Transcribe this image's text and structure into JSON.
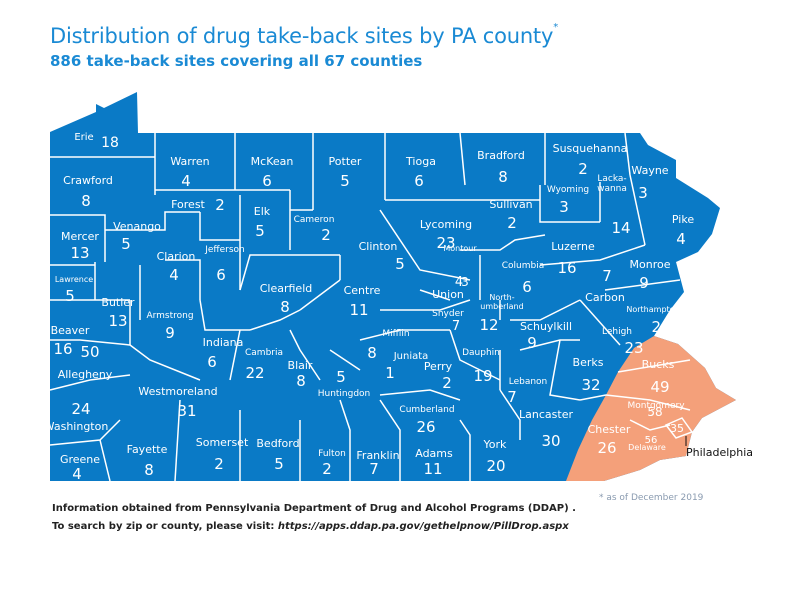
{
  "title": "Distribution of drug take-back sites by PA county",
  "title_mark": "*",
  "subtitle": "886 take-back sites covering all 67 counties",
  "footer": {
    "line1": "Information obtained from Pennsylvania Department of Drug and Alcohol Programs (DDAP) .",
    "line2_prefix": "To search by zip or county, please visit: ",
    "line2_url": "https://apps.ddap.pa.gov/gethelpnow/PillDrop.aspx",
    "as_of": "* as of December 2019"
  },
  "colors": {
    "default": "#0a7ac6",
    "highlight": "#f4a07a",
    "border": "#ffffff"
  },
  "callout": "Philadelphia",
  "counties": [
    {
      "name": "Erie",
      "count": "18",
      "region": "default"
    },
    {
      "name": "Warren",
      "count": "4",
      "region": "default"
    },
    {
      "name": "McKean",
      "count": "6",
      "region": "default"
    },
    {
      "name": "Potter",
      "count": "5",
      "region": "default"
    },
    {
      "name": "Tioga",
      "count": "6",
      "region": "default"
    },
    {
      "name": "Bradford",
      "count": "8",
      "region": "default"
    },
    {
      "name": "Susquehanna",
      "count": "2",
      "region": "default"
    },
    {
      "name": "Wayne",
      "count": "3",
      "region": "default"
    },
    {
      "name": "Crawford",
      "count": "8",
      "region": "default"
    },
    {
      "name": "Forest",
      "count": "2",
      "region": "default"
    },
    {
      "name": "Elk",
      "count": "5",
      "region": "default"
    },
    {
      "name": "Cameron",
      "count": "2",
      "region": "default"
    },
    {
      "name": "Sullivan",
      "count": "2",
      "region": "default"
    },
    {
      "name": "Wyoming",
      "count": "3",
      "region": "default"
    },
    {
      "name": "Lacka-\nwanna",
      "count": "14",
      "region": "default"
    },
    {
      "name": "Pike",
      "count": "4",
      "region": "default"
    },
    {
      "name": "Mercer",
      "count": "13",
      "region": "default"
    },
    {
      "name": "Venango",
      "count": "5",
      "region": "default"
    },
    {
      "name": "Clarion",
      "count": "4",
      "region": "default"
    },
    {
      "name": "Jefferson",
      "count": "6",
      "region": "default"
    },
    {
      "name": "Clinton",
      "count": "5",
      "region": "default"
    },
    {
      "name": "Lycoming",
      "count": "23",
      "region": "default"
    },
    {
      "name": "Montour",
      "count": "3",
      "region": "default"
    },
    {
      "name": "Columbia",
      "count": "6",
      "region": "default"
    },
    {
      "name": "Luzerne",
      "count": "16",
      "region": "default"
    },
    {
      "name": "Monroe",
      "count": "9",
      "region": "default"
    },
    {
      "name": "Lawrence",
      "count": "5",
      "region": "default"
    },
    {
      "name": "Butler",
      "count": "13",
      "region": "default"
    },
    {
      "name": "Armstrong",
      "count": "9",
      "region": "default"
    },
    {
      "name": "Clearfield",
      "count": "8",
      "region": "default"
    },
    {
      "name": "Centre",
      "count": "11",
      "region": "default"
    },
    {
      "name": "Union",
      "count": "4",
      "region": "default"
    },
    {
      "name": "North-\numberland",
      "count": "12",
      "region": "default"
    },
    {
      "name": "Carbon",
      "count": "7",
      "region": "default"
    },
    {
      "name": "Northampton",
      "count": "26",
      "region": "default"
    },
    {
      "name": "Beaver",
      "count": "16",
      "region": "default"
    },
    {
      "name": "Indiana",
      "count": "6",
      "region": "default"
    },
    {
      "name": "Snyder",
      "count": "7",
      "region": "default"
    },
    {
      "name": "Schuylkill",
      "count": "9",
      "region": "default"
    },
    {
      "name": "Lehigh",
      "count": "23",
      "region": "default"
    },
    {
      "name": "Allegheny",
      "count": "50",
      "region": "default"
    },
    {
      "name": "Cambria",
      "count": "22",
      "region": "default"
    },
    {
      "name": "Blair",
      "count": "8",
      "region": "default"
    },
    {
      "name": "Mifflin",
      "count": "8",
      "region": "default"
    },
    {
      "name": "Juniata",
      "count": "1",
      "region": "default"
    },
    {
      "name": "Dauphin",
      "count": "19",
      "region": "default"
    },
    {
      "name": "Perry",
      "count": "2",
      "region": "default"
    },
    {
      "name": "Lebanon",
      "count": "7",
      "region": "default"
    },
    {
      "name": "Berks",
      "count": "32",
      "region": "default"
    },
    {
      "name": "Bucks",
      "count": "49",
      "region": "highlight"
    },
    {
      "name": "Westmoreland",
      "count": "31",
      "region": "default"
    },
    {
      "name": "Huntingdon",
      "count": "5",
      "region": "default"
    },
    {
      "name": "Cumberland",
      "count": "26",
      "region": "default"
    },
    {
      "name": "Lancaster",
      "count": "30",
      "region": "default"
    },
    {
      "name": "Montgomery",
      "count": "58",
      "region": "highlight"
    },
    {
      "name": "Washington",
      "count": "24",
      "region": "default"
    },
    {
      "name": "Chester",
      "count": "26",
      "region": "highlight"
    },
    {
      "name": "Delaware",
      "count": "56",
      "region": "highlight"
    },
    {
      "name": "Philadelphia",
      "count": "35",
      "region": "highlight"
    },
    {
      "name": "Somerset",
      "count": "2",
      "region": "default"
    },
    {
      "name": "Bedford",
      "count": "5",
      "region": "default"
    },
    {
      "name": "Fulton",
      "count": "2",
      "region": "default"
    },
    {
      "name": "Franklin",
      "count": "7",
      "region": "default"
    },
    {
      "name": "Adams",
      "count": "11",
      "region": "default"
    },
    {
      "name": "York",
      "count": "20",
      "region": "default"
    },
    {
      "name": "Greene",
      "count": "4",
      "region": "default"
    },
    {
      "name": "Fayette",
      "count": "8",
      "region": "default"
    }
  ]
}
